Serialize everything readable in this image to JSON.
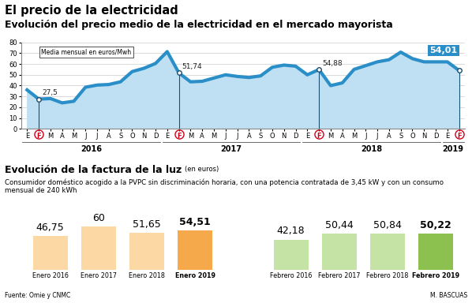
{
  "header": {
    "title": "El precio de la electricidad"
  },
  "chart_data": [
    {
      "type": "line",
      "title": "Evolución del precio medio de la electricidad en el mercado mayorista",
      "annotation": "Media mensual en euros/Mwh",
      "categories": [
        "E",
        "F",
        "M",
        "A",
        "M",
        "J",
        "J",
        "A",
        "S",
        "O",
        "N",
        "D",
        "E",
        "F",
        "M",
        "A",
        "M",
        "J",
        "J",
        "A",
        "S",
        "O",
        "N",
        "D",
        "E",
        "F",
        "M",
        "A",
        "M",
        "J",
        "J",
        "A",
        "S",
        "O",
        "N",
        "D",
        "E",
        "F"
      ],
      "years": [
        "2016",
        "2017",
        "2018",
        "2019"
      ],
      "values": [
        36,
        27.5,
        28,
        24,
        25.5,
        38.5,
        40.5,
        41,
        43.5,
        53,
        56,
        60.5,
        71.5,
        51.74,
        43.5,
        44,
        47,
        50,
        48.5,
        47.5,
        49,
        57,
        59,
        58,
        50,
        54.88,
        40,
        42.5,
        55,
        58.5,
        62,
        64,
        71,
        65,
        62,
        62,
        62,
        54.01
      ],
      "value_labels": [
        null,
        "27,5",
        null,
        null,
        null,
        null,
        null,
        null,
        null,
        null,
        null,
        null,
        null,
        "51,74",
        null,
        null,
        null,
        null,
        null,
        null,
        null,
        null,
        null,
        null,
        null,
        "54,88",
        null,
        null,
        null,
        null,
        null,
        null,
        null,
        null,
        null,
        null,
        null,
        "54,01"
      ],
      "color": "#2a8fc8",
      "ylim": [
        0,
        80
      ],
      "yticks": [
        0,
        10,
        20,
        30,
        40,
        50,
        60,
        70,
        80
      ],
      "grid": true
    },
    {
      "type": "bar",
      "categories": [
        "Enero 2016",
        "Enero 2017",
        "Enero 2018",
        "Enero 2019"
      ],
      "values": [
        46.75,
        60,
        51.65,
        54.51
      ],
      "value_labels": [
        "46,75",
        "60",
        "51,65",
        "54,51"
      ],
      "colors": [
        "#fcd9a4",
        "#fcd9a4",
        "#fcd9a4",
        "#f5a94a"
      ],
      "data_labels": true,
      "tick_labels": "x",
      "ylim": [
        0,
        70
      ]
    },
    {
      "type": "bar",
      "categories": [
        "Febrero 2016",
        "Febrero 2017",
        "Febrero 2018",
        "Febrero 2019"
      ],
      "values": [
        42.18,
        50.44,
        50.84,
        50.22
      ],
      "value_labels": [
        "42,18",
        "50,44",
        "50,84",
        "50,22"
      ],
      "colors": [
        "#c5e3a5",
        "#c5e3a5",
        "#c5e3a5",
        "#8cc04f"
      ],
      "data_labels": true,
      "tick_labels": "x",
      "ylim": [
        0,
        70
      ]
    }
  ],
  "section": {
    "title": "Evolución de la factura de la luz",
    "unit": "(en euros)",
    "subtitle": "Consumidor doméstico acogido a la PVPC sin discriminación horaria, con una potencia contratada de 3,45 kW y con un consumo mensual de 240 kWh"
  },
  "footer": {
    "source": "Fuente: Omie y CNMC",
    "credit": "M. BASCUAS"
  }
}
